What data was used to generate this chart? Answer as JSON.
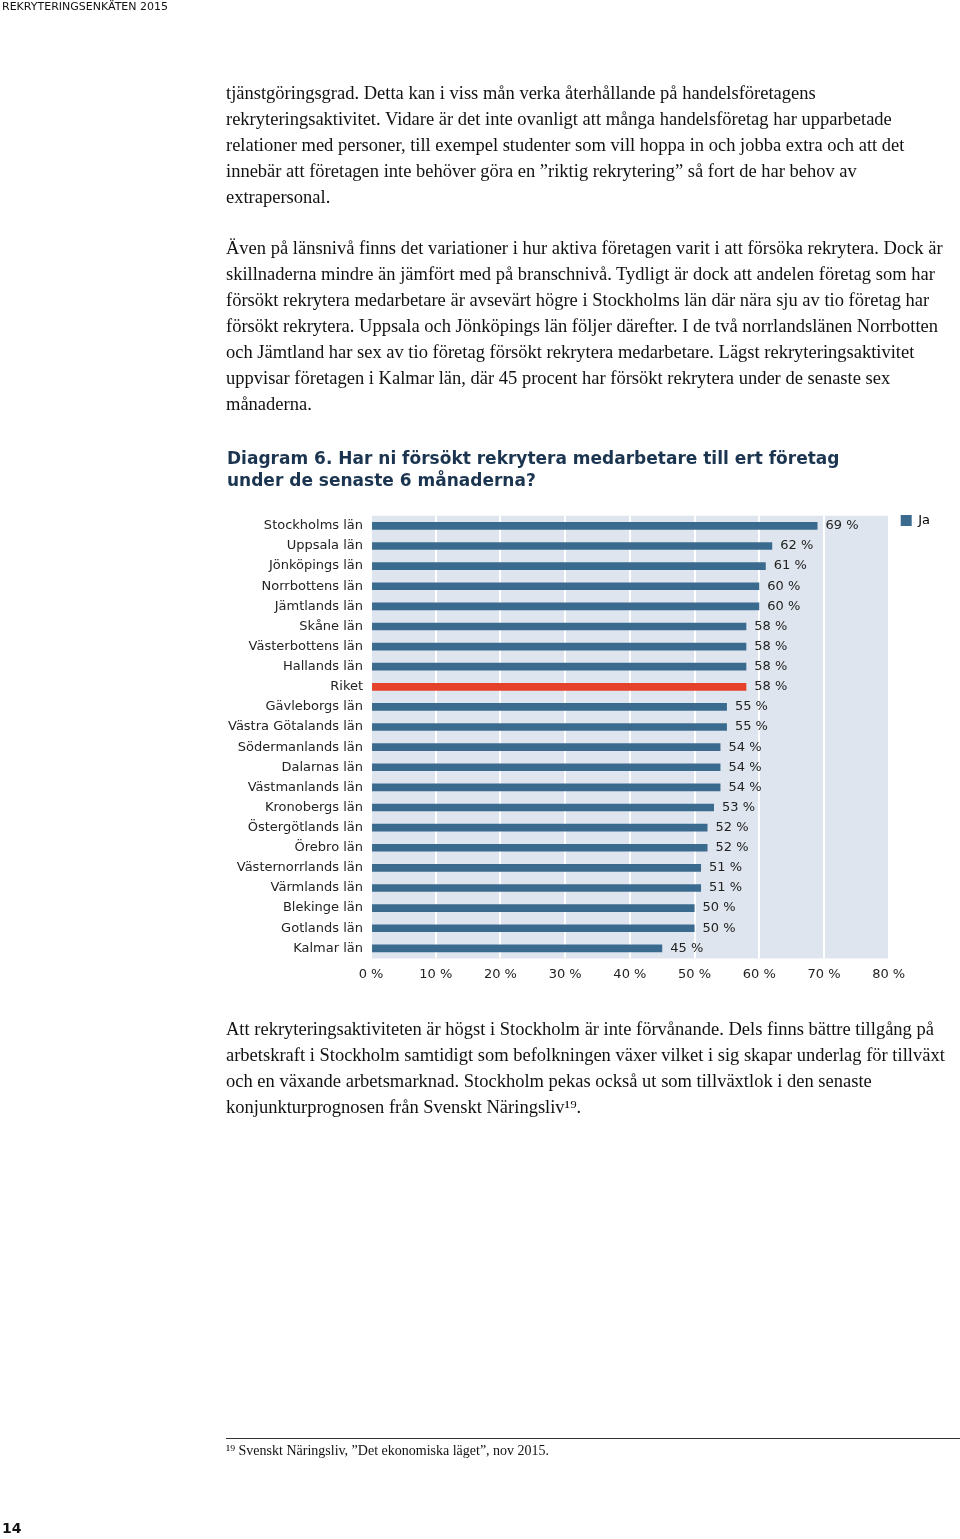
{
  "chart_data": {
    "type": "bar",
    "orientation": "horizontal",
    "title": "Diagram 6. Har ni försökt rekrytera medarbetare till ert företag under de senaste 6 månaderna?",
    "categories": [
      "Stockholms län",
      "Uppsala län",
      "Jönköpings län",
      "Norrbottens län",
      "Jämtlands län",
      "Skåne län",
      "Västerbottens län",
      "Hallands län",
      "Riket",
      "Gävleborgs län",
      "Västra Götalands län",
      "Södermanlands län",
      "Dalarnas län",
      "Västmanlands län",
      "Kronobergs län",
      "Östergötlands län",
      "Örebro län",
      "Västernorrlands län",
      "Värmlands län",
      "Blekinge län",
      "Gotlands län",
      "Kalmar län"
    ],
    "series": [
      {
        "name": "Ja",
        "color": "#3a6b8f",
        "colors": [
          "#3a6b8f",
          "#3a6b8f",
          "#3a6b8f",
          "#3a6b8f",
          "#3a6b8f",
          "#3a6b8f",
          "#3a6b8f",
          "#3a6b8f",
          "#e5412b",
          "#3a6b8f",
          "#3a6b8f",
          "#3a6b8f",
          "#3a6b8f",
          "#3a6b8f",
          "#3a6b8f",
          "#3a6b8f",
          "#3a6b8f",
          "#3a6b8f",
          "#3a6b8f",
          "#3a6b8f",
          "#3a6b8f",
          "#3a6b8f"
        ],
        "values": [
          69,
          62,
          61,
          60,
          60,
          58,
          58,
          58,
          58,
          55,
          55,
          54,
          54,
          54,
          53,
          52,
          52,
          51,
          51,
          50,
          50,
          45
        ],
        "value_labels": [
          "69 %",
          "62 %",
          "61 %",
          "60 %",
          "60 %",
          "58 %",
          "58 %",
          "58 %",
          "58 %",
          "55 %",
          "55 %",
          "54 %",
          "54 %",
          "54 %",
          "53 %",
          "52 %",
          "52 %",
          "51 %",
          "51 %",
          "50 %",
          "50 %",
          "45 %"
        ]
      }
    ],
    "xlim": [
      0,
      80
    ],
    "xticks": [
      {
        "value": 0,
        "label": "0 %"
      },
      {
        "value": 10,
        "label": "10 %"
      },
      {
        "value": 20,
        "label": "20 %"
      },
      {
        "value": 30,
        "label": "30 %"
      },
      {
        "value": 40,
        "label": "40 %"
      },
      {
        "value": 50,
        "label": "50 %"
      },
      {
        "value": 60,
        "label": "60 %"
      },
      {
        "value": 70,
        "label": "70 %"
      },
      {
        "value": 80,
        "label": "80 %"
      }
    ],
    "grid": "x",
    "legend": "top right",
    "annotations": [
      "REKRYTERINGSENKÄTEN 2015",
      "tjänstgöringsgrad. Detta kan i viss mån verka återhållande på handelsföretagens rekryteringsaktivitet. Vidare är det inte ovanligt att många handelsföretag har upparbetade relationer med personer, till exempel studenter som vill hoppa in och jobba extra och att det innebär att företagen inte behöver göra en ”riktig rekrytering” så fort de har behov av extrapersonal.",
      "Även på länsnivå finns det variationer i hur aktiva företagen varit i att försöka rekrytera. Dock är skillnaderna mindre än jämfört med på branschnivå. Tydligt är dock att andelen företag som har försökt rekrytera medarbetare är avsevärt högre i Stockholms län där nära sju av tio företag har försökt rekrytera. Uppsala och Jönköpings län följer därefter. I de två norrlandslänen Norrbotten och Jämtland har sex av tio företag försökt rekrytera medarbetare. Lägst rekryteringsaktivitet uppvisar företagen i Kalmar län, där 45 procent har försökt rekrytera under de senaste sex månaderna.",
      "Att rekryteringsaktiviteten är högst i Stockholm är inte förvånande. Dels finns bättre tillgång på arbetskraft i Stockholm samtidigt som befolkningen växer vilket i sig skapar underlag för tillväxt och en växande arbetsmarknad. Stockholm pekas också ut som tillväxtlok i den senaste konjunkturprognosen från Svenskt Näringsliv¹⁹.",
      "¹⁹ Svenskt Näringsliv, ”Det ekonomiska läget”, nov 2015.",
      "14"
    ]
  }
}
